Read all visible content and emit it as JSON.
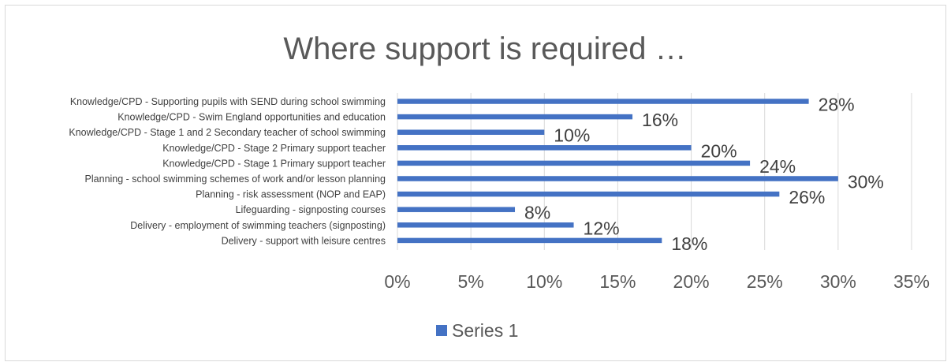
{
  "chart_data": {
    "type": "bar",
    "orientation": "horizontal",
    "title": "Where support is required …",
    "categories": [
      "Knowledge/CPD - Supporting pupils with SEND during school swimming",
      "Knowledge/CPD - Swim England opportunities and education",
      "Knowledge/CPD - Stage 1 and 2 Secondary teacher of school swimming",
      "Knowledge/CPD - Stage 2 Primary support teacher",
      "Knowledge/CPD - Stage 1 Primary support teacher",
      "Planning - school swimming schemes of work and/or lesson planning",
      "Planning - risk assessment (NOP and EAP)",
      "Lifeguarding - signposting courses",
      "Delivery - employment of swimming teachers (signposting)",
      "Delivery  - support with leisure centres"
    ],
    "series": [
      {
        "name": "Series 1",
        "values": [
          0.28,
          0.16,
          0.1,
          0.2,
          0.24,
          0.3,
          0.26,
          0.08,
          0.12,
          0.18
        ],
        "labels": [
          "28%",
          "16%",
          "10%",
          "20%",
          "24%",
          "30%",
          "26%",
          "8%",
          "12%",
          "18%"
        ]
      }
    ],
    "xlim": [
      0,
      0.35
    ],
    "x_ticks": [
      0,
      0.05,
      0.1,
      0.15,
      0.2,
      0.25,
      0.3,
      0.35
    ],
    "x_tick_labels": [
      "0%",
      "5%",
      "10%",
      "15%",
      "20%",
      "25%",
      "30%",
      "35%"
    ],
    "grid": true,
    "legend": "bottom",
    "colors": {
      "bar": "#4472c4",
      "grid": "#d9d9d9",
      "text": "#595959"
    }
  }
}
